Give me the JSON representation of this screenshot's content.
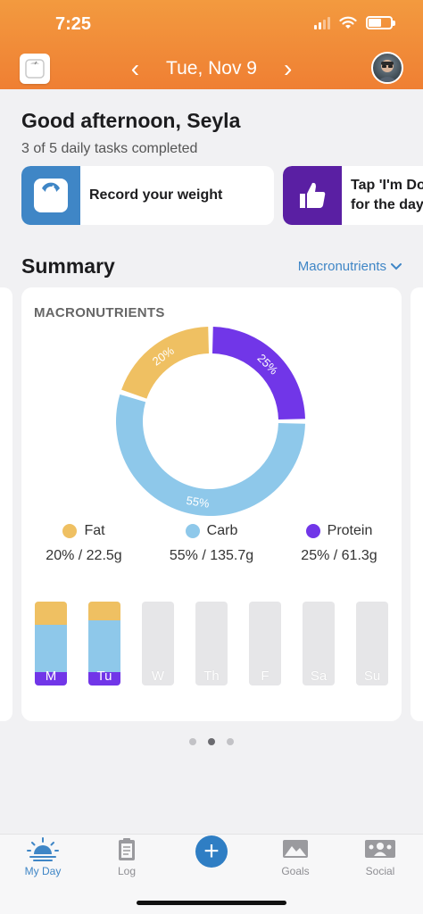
{
  "status": {
    "time": "7:25"
  },
  "header": {
    "date": "Tue, Nov 9",
    "prev": "‹",
    "next": "›"
  },
  "greeting": {
    "title": "Good afternoon, Seyla",
    "subtitle": "3 of 5 daily tasks completed"
  },
  "tasks": [
    {
      "label": "Record your weight",
      "icon": "scale-icon",
      "color": "#3f86c6"
    },
    {
      "label": "Tap 'I'm Do",
      "label2": "for the day",
      "icon": "thumbs-up-icon",
      "color": "#5a1fa3"
    }
  ],
  "summary": {
    "title": "Summary",
    "dropdown": "Macronutrients"
  },
  "chart_data": {
    "type": "pie",
    "title": "MACRONUTRIENTS",
    "categories": [
      "Fat",
      "Carb",
      "Protein"
    ],
    "values": [
      20,
      55,
      25
    ],
    "labels": [
      "20%",
      "55%",
      "25%"
    ],
    "colors": [
      "#efc062",
      "#8ec8ea",
      "#7136e8"
    ],
    "legend": [
      {
        "name": "Fat",
        "value": "20% / 22.5g"
      },
      {
        "name": "Carb",
        "value": "55% / 135.7g"
      },
      {
        "name": "Protein",
        "value": "25% / 61.3g"
      }
    ],
    "weekly": {
      "days": [
        "M",
        "Tu",
        "W",
        "Th",
        "F",
        "Sa",
        "Su"
      ],
      "fat": [
        0.28,
        0.22,
        0,
        0,
        0,
        0,
        0
      ],
      "carb": [
        0.56,
        0.62,
        0,
        0,
        0,
        0,
        0
      ],
      "protein": [
        0.16,
        0.16,
        0,
        0,
        0,
        0,
        0
      ]
    }
  },
  "pager": {
    "count": 3,
    "active": 1
  },
  "tabs": [
    {
      "label": "My Day",
      "icon": "sunrise-icon"
    },
    {
      "label": "Log",
      "icon": "clipboard-icon"
    },
    {
      "label": "+",
      "icon": "plus-icon"
    },
    {
      "label": "Goals",
      "icon": "mountain-icon"
    },
    {
      "label": "Social",
      "icon": "social-icon"
    }
  ]
}
